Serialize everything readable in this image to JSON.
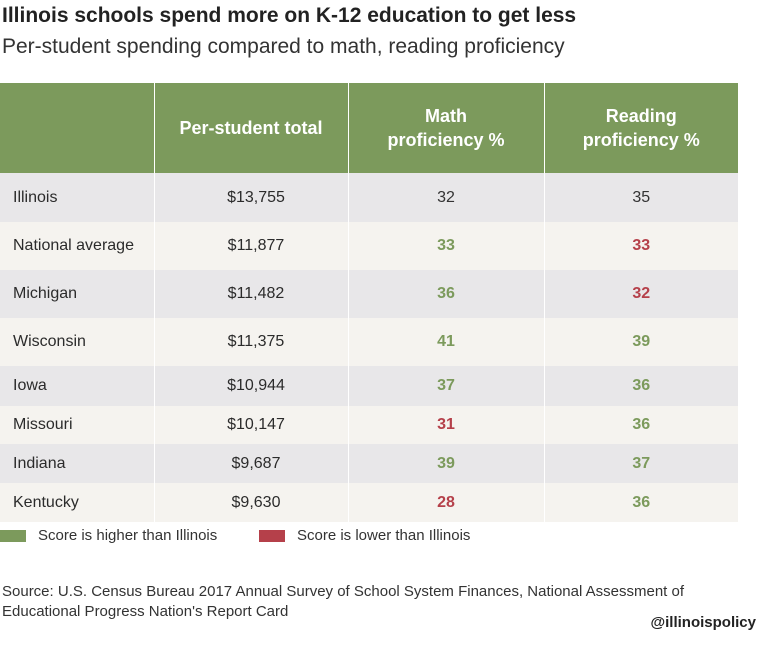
{
  "title": "Illinois schools spend more on K-12 education to get less",
  "subtitle": "Per-student spending compared to math, reading proficiency",
  "colors": {
    "header_bg": "#7c9a5c",
    "higher": "#7c9a5c",
    "lower": "#b5404a"
  },
  "chart_data": {
    "type": "table",
    "columns": [
      "",
      "Per-student total",
      "Math proficiency %",
      "Reading proficiency %"
    ],
    "rows": [
      {
        "state": "Illinois",
        "spending": "$13,755",
        "math": "32",
        "reading": "35",
        "math_status": "neutral",
        "reading_status": "neutral"
      },
      {
        "state": "National average",
        "spending": "$11,877",
        "math": "33",
        "reading": "33",
        "math_status": "hi",
        "reading_status": "lo"
      },
      {
        "state": "Michigan",
        "spending": "$11,482",
        "math": "36",
        "reading": "32",
        "math_status": "hi",
        "reading_status": "lo"
      },
      {
        "state": "Wisconsin",
        "spending": "$11,375",
        "math": "41",
        "reading": "39",
        "math_status": "hi",
        "reading_status": "hi"
      },
      {
        "state": "Iowa",
        "spending": "$10,944",
        "math": "37",
        "reading": "36",
        "math_status": "hi",
        "reading_status": "hi"
      },
      {
        "state": "Missouri",
        "spending": "$10,147",
        "math": "31",
        "reading": "36",
        "math_status": "lo",
        "reading_status": "hi"
      },
      {
        "state": "Indiana",
        "spending": "$9,687",
        "math": "39",
        "reading": "37",
        "math_status": "hi",
        "reading_status": "hi"
      },
      {
        "state": "Kentucky",
        "spending": "$9,630",
        "math": "28",
        "reading": "36",
        "math_status": "lo",
        "reading_status": "hi"
      }
    ]
  },
  "legend": {
    "higher": "Score is higher than Illinois",
    "lower": "Score is lower than Illinois"
  },
  "source": "Source: U.S. Census Bureau 2017 Annual Survey of School System Finances, National Assessment of Educational Progress Nation's Report Card",
  "handle": "@illinoispolicy"
}
